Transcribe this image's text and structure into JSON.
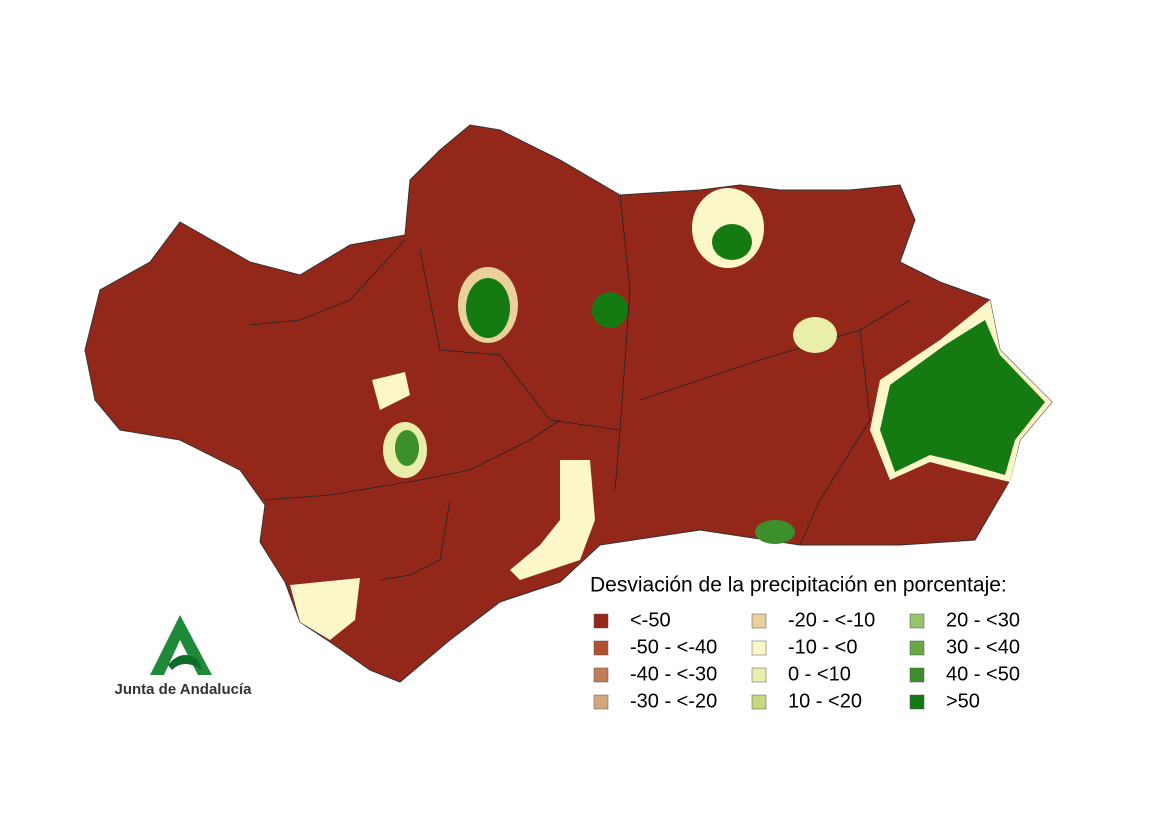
{
  "legend": {
    "title": "Desviación de la precipitación en porcentaje:",
    "items": [
      {
        "label": "<-50",
        "color": "#93281a"
      },
      {
        "label": "-50 - <-40",
        "color": "#b0522f"
      },
      {
        "label": "-40 - <-30",
        "color": "#c17c55"
      },
      {
        "label": "-30 - <-20",
        "color": "#d4a77a"
      },
      {
        "label": "-20 - <-10",
        "color": "#ead19c"
      },
      {
        "label": "-10 - <0",
        "color": "#fbf7c8"
      },
      {
        "label": "0 - <10",
        "color": "#e9eeaa"
      },
      {
        "label": "10 - <20",
        "color": "#c3d982"
      },
      {
        "label": "20 - <30",
        "color": "#98c46a"
      },
      {
        "label": "30 - <40",
        "color": "#6aa846"
      },
      {
        "label": "40 - <50",
        "color": "#3d8f2c"
      },
      {
        "label": ">50",
        "color": "#167a12"
      }
    ]
  },
  "logo": {
    "text": "Junta de Andalucía"
  }
}
